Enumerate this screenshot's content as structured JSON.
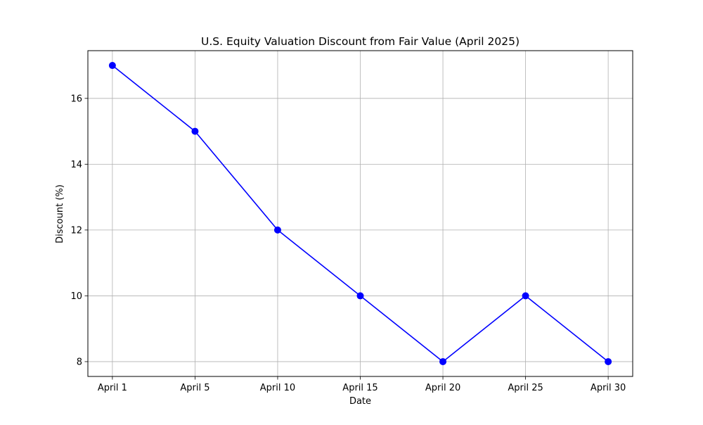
{
  "chart_data": {
    "type": "line",
    "title": "U.S. Equity Valuation Discount from Fair Value (April 2025)",
    "xlabel": "Date",
    "ylabel": "Discount (%)",
    "categories": [
      "April 1",
      "April 5",
      "April 10",
      "April 15",
      "April 20",
      "April 25",
      "April 30"
    ],
    "series": [
      {
        "values": [
          17,
          15,
          12,
          10,
          8,
          10,
          8
        ],
        "color": "#0000ff",
        "marker": "circle"
      }
    ],
    "y_ticks": [
      8,
      10,
      12,
      14,
      16
    ],
    "ylim": [
      7.55,
      17.45
    ],
    "grid": true,
    "legend": "none"
  }
}
